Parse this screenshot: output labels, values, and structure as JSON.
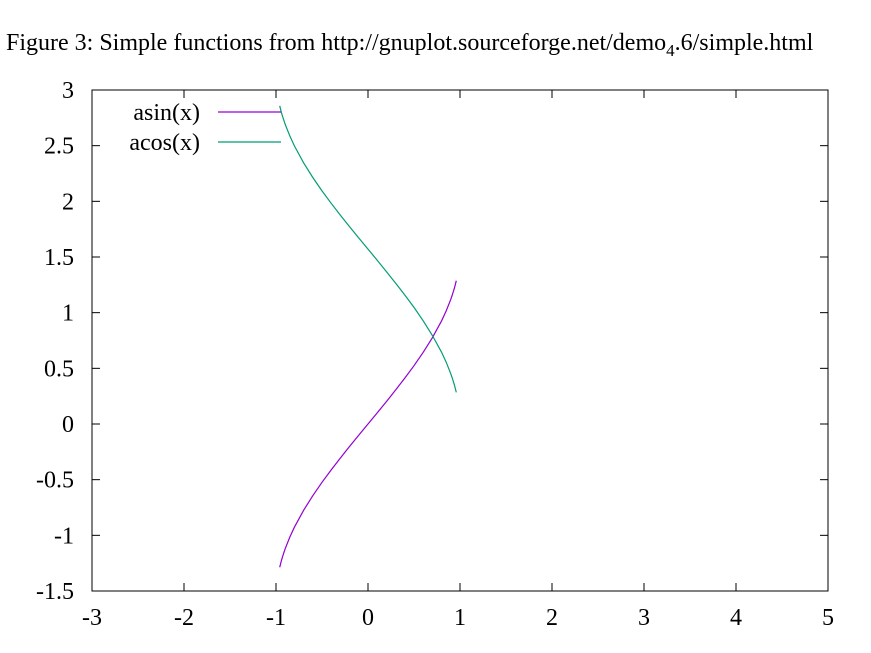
{
  "chart_data": {
    "type": "line",
    "title_prefix": "Figure 3: Simple functions from http://gnuplot.sourceforge.net/demo",
    "title_subscript": "4",
    "title_suffix": ".6/simple.html",
    "xlabel": "",
    "ylabel": "",
    "xlim": [
      -3,
      5
    ],
    "ylim": [
      -1.5,
      3
    ],
    "x_ticks": [
      "-3",
      "-2",
      "-1",
      "0",
      "1",
      "2",
      "3",
      "4",
      "5"
    ],
    "y_ticks": [
      "-1.5",
      "-1",
      "-0.5",
      "0",
      "0.5",
      "1",
      "1.5",
      "2",
      "2.5",
      "3"
    ],
    "grid": false,
    "legend_position": "top-left",
    "series": [
      {
        "name": "asin(x)",
        "color": "#9400d3",
        "x": [
          -0.96,
          -0.94,
          -0.92,
          -0.9,
          -0.85,
          -0.8,
          -0.7,
          -0.6,
          -0.5,
          -0.4,
          -0.3,
          -0.2,
          -0.1,
          0,
          0.1,
          0.2,
          0.3,
          0.4,
          0.5,
          0.6,
          0.7,
          0.8,
          0.85,
          0.9,
          0.92,
          0.94,
          0.96
        ],
        "y": [
          -1.287,
          -1.223,
          -1.169,
          -1.12,
          -1.016,
          -0.927,
          -0.775,
          -0.644,
          -0.524,
          -0.412,
          -0.305,
          -0.201,
          -0.1,
          0,
          0.1,
          0.201,
          0.305,
          0.412,
          0.524,
          0.644,
          0.775,
          0.927,
          1.016,
          1.12,
          1.169,
          1.223,
          1.287
        ]
      },
      {
        "name": "acos(x)",
        "color": "#009e73",
        "x": [
          -0.96,
          -0.94,
          -0.92,
          -0.9,
          -0.85,
          -0.8,
          -0.7,
          -0.6,
          -0.5,
          -0.4,
          -0.3,
          -0.2,
          -0.1,
          0,
          0.1,
          0.2,
          0.3,
          0.4,
          0.5,
          0.6,
          0.7,
          0.8,
          0.85,
          0.9,
          0.92,
          0.94,
          0.96
        ],
        "y": [
          2.858,
          2.794,
          2.74,
          2.691,
          2.588,
          2.498,
          2.346,
          2.214,
          2.094,
          1.982,
          1.875,
          1.772,
          1.671,
          1.571,
          1.471,
          1.369,
          1.266,
          1.159,
          1.047,
          0.927,
          0.795,
          0.644,
          0.555,
          0.451,
          0.403,
          0.348,
          0.284
        ]
      }
    ]
  }
}
